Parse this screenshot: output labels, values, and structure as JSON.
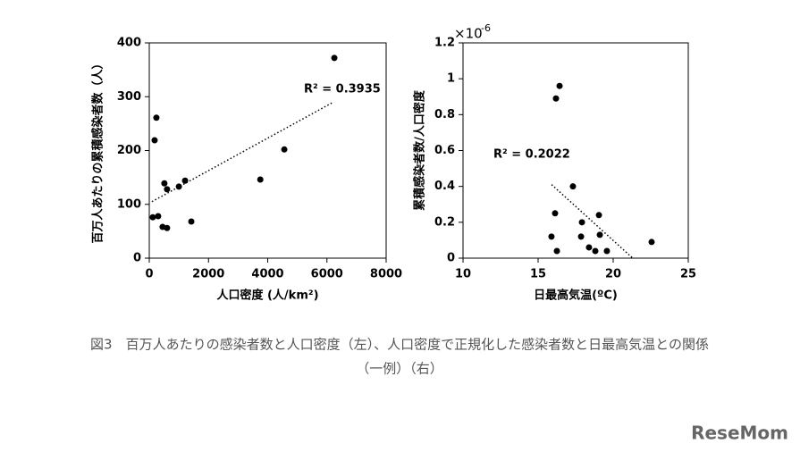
{
  "chart_data": [
    {
      "type": "scatter",
      "x_label": "人口密度 (人/km²)",
      "y_label": "百万人あたりの累積感染者数（人）",
      "annotation": "R² = 0.3935",
      "x": [
        6250,
        4560,
        3750,
        240,
        180,
        120,
        300,
        510,
        600,
        1000,
        1210,
        450,
        600,
        1420
      ],
      "y": [
        372,
        202,
        146,
        261,
        219,
        76,
        78,
        139,
        128,
        133,
        144,
        58,
        56,
        68
      ],
      "color": "#000000",
      "trendline": {
        "x": [
          90,
          6220
        ],
        "y": [
          105,
          290
        ]
      },
      "xlim": [
        0,
        8000
      ],
      "xticks": [
        0,
        2000,
        4000,
        6000,
        8000
      ],
      "ylim": [
        0,
        400
      ],
      "yticks": [
        0,
        100,
        200,
        300,
        400
      ]
    },
    {
      "type": "scatter",
      "x_label": "日最高気温(ºC)",
      "y_label": "累積感染者数/人口密度",
      "annotation": "R² = 0.2022",
      "y_multiplier_base": "×10",
      "y_multiplier_exponent": "-6",
      "x": [
        16.19,
        16.43,
        17.32,
        16.13,
        17.92,
        19.05,
        15.89,
        17.86,
        19.11,
        18.39,
        18.81,
        19.58,
        16.25,
        22.56
      ],
      "y": [
        0.89,
        0.96,
        0.4,
        0.25,
        0.2,
        0.24,
        0.12,
        0.12,
        0.13,
        0.06,
        0.04,
        0.04,
        0.04,
        0.09
      ],
      "color": "#000000",
      "trendline": {
        "x": [
          15.9,
          21.3
        ],
        "y": [
          0.41,
          0
        ]
      },
      "xlim": [
        10,
        25
      ],
      "xticks": [
        10,
        15,
        20,
        25
      ],
      "ylim": [
        0,
        1.2
      ],
      "yticks": [
        0,
        0.2,
        0.4,
        0.6,
        0.8,
        1,
        1.2
      ]
    }
  ],
  "caption": [
    "図3　百万人あたりの感染者数と人口密度（左）、人口密度で正規化した感染者数と日最高気温との関係",
    "（一例）（右）"
  ],
  "logo": "ReseMom"
}
